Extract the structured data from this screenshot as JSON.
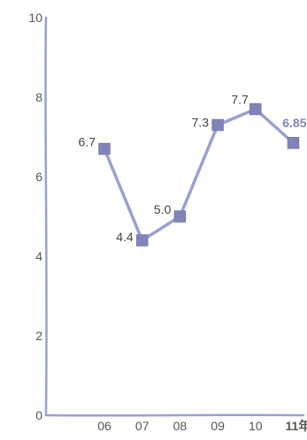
{
  "chart_data": {
    "type": "line",
    "title": "",
    "xlabel": "",
    "ylabel": "",
    "x_tick_labels": [
      "06",
      "07",
      "08",
      "09",
      "10",
      "11年"
    ],
    "y_tick_labels": [
      "0",
      "2",
      "4",
      "6",
      "8",
      "10"
    ],
    "ylim": [
      0,
      10
    ],
    "grid": false,
    "legend": "none",
    "series": [
      {
        "values": [
          6.7,
          4.4,
          5.0,
          7.3,
          7.7,
          6.85
        ],
        "labels": [
          "6.7",
          "4.4",
          "5.0",
          "7.3",
          "7.7",
          "6.85"
        ],
        "color": "#8a8fc4",
        "marker": "square",
        "highlight_last": true
      }
    ],
    "colors": {
      "axis": "#9aa0d0",
      "line": "#9aa0d0",
      "marker": "#7f83b8",
      "highlight": "#7f83c2",
      "tick_text": "#555555"
    }
  }
}
